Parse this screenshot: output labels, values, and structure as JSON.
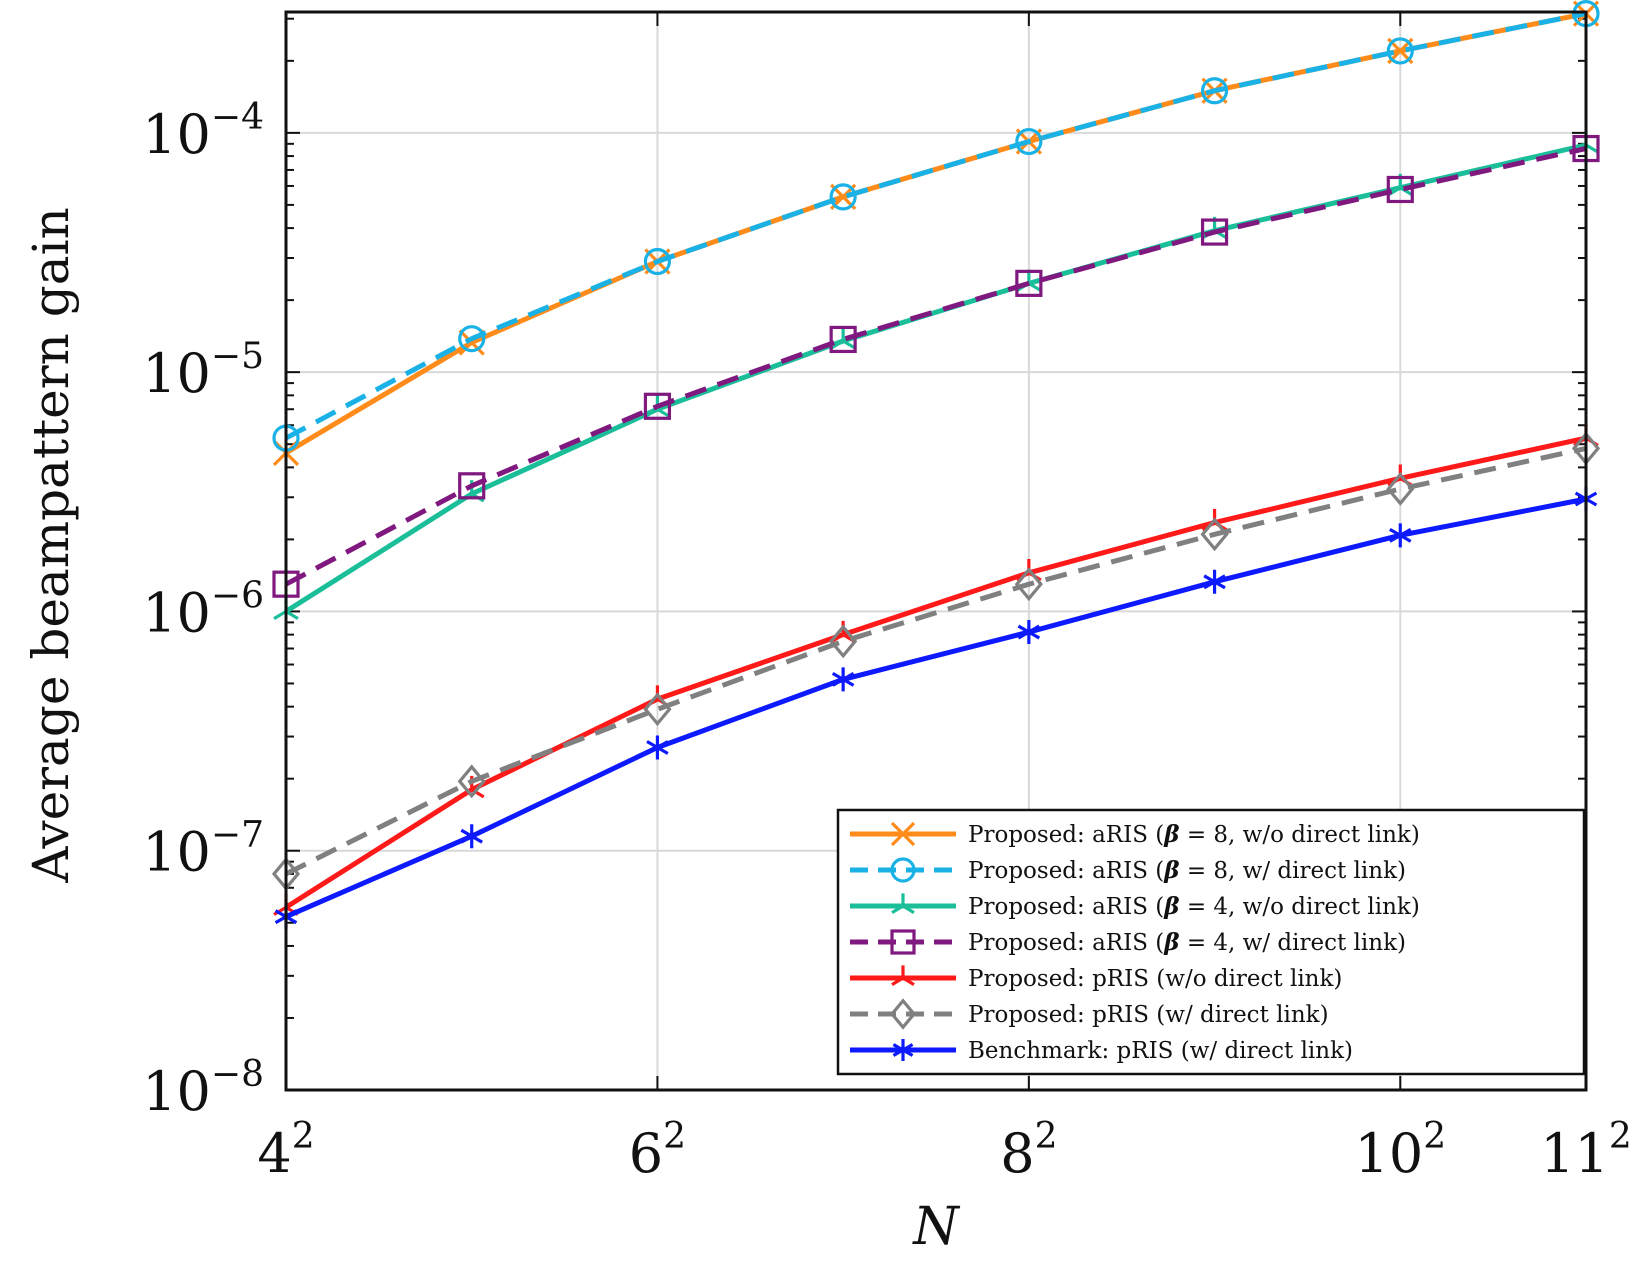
{
  "chart_data": {
    "type": "line",
    "title": "",
    "xlabel": "N",
    "ylabel": "Average beampattern gain",
    "x": [
      16,
      25,
      36,
      49,
      64,
      81,
      100,
      121
    ],
    "xticks": [
      16,
      36,
      64,
      100,
      121
    ],
    "xtick_labels": [
      {
        "base": "4",
        "exp": "2"
      },
      {
        "base": "6",
        "exp": "2"
      },
      {
        "base": "8",
        "exp": "2"
      },
      {
        "base": "10",
        "exp": "2"
      },
      {
        "base": "11",
        "exp": "2"
      }
    ],
    "xlim": [
      16,
      121
    ],
    "yscale": "log",
    "ylim": [
      1e-08,
      0.00032
    ],
    "yticks": [
      1e-08,
      1e-07,
      1e-06,
      1e-05,
      0.0001
    ],
    "ytick_labels": [
      {
        "base": "10",
        "exp": "−8"
      },
      {
        "base": "10",
        "exp": "−7"
      },
      {
        "base": "10",
        "exp": "−6"
      },
      {
        "base": "10",
        "exp": "−5"
      },
      {
        "base": "10",
        "exp": "−4"
      }
    ],
    "grid": true,
    "legend_position": "bottom-right",
    "series": [
      {
        "name": "Proposed: aRIS (β = 8, w/o direct link)",
        "color": "#ff8c1a",
        "dash": "solid",
        "marker": "x",
        "values": [
          4.6e-06,
          1.33e-05,
          2.9e-05,
          5.4e-05,
          9.2e-05,
          0.00015,
          0.00022,
          0.000315
        ]
      },
      {
        "name": "Proposed: aRIS (β = 8, w/ direct link)",
        "color": "#1ab2e6",
        "dash": "dashed",
        "marker": "o",
        "values": [
          5.3e-06,
          1.38e-05,
          2.9e-05,
          5.4e-05,
          9.2e-05,
          0.00015,
          0.00022,
          0.000315
        ]
      },
      {
        "name": "Proposed: aRIS (β = 4, w/o direct link)",
        "color": "#1abf9a",
        "dash": "solid",
        "marker": "tri",
        "values": [
          1e-06,
          3.1e-06,
          7e-06,
          1.35e-05,
          2.35e-05,
          3.9e-05,
          5.9e-05,
          8.9e-05
        ]
      },
      {
        "name": "Proposed: aRIS (β = 4, w/ direct link)",
        "color": "#80197f",
        "dash": "dashed",
        "marker": "square",
        "values": [
          1.3e-06,
          3.35e-06,
          7.2e-06,
          1.37e-05,
          2.35e-05,
          3.85e-05,
          5.8e-05,
          8.6e-05
        ]
      },
      {
        "name": "Proposed: pRIS (w/o direct link)",
        "color": "#ff1a1a",
        "dash": "solid",
        "marker": "tri",
        "values": [
          5.8e-08,
          1.8e-07,
          4.3e-07,
          8e-07,
          1.45e-06,
          2.35e-06,
          3.6e-06,
          5.3e-06
        ]
      },
      {
        "name": "Proposed: pRIS (w/ direct link)",
        "color": "#808080",
        "dash": "dashed",
        "marker": "diamond",
        "values": [
          8e-08,
          1.95e-07,
          3.9e-07,
          7.5e-07,
          1.3e-06,
          2.1e-06,
          3.25e-06,
          4.8e-06
        ]
      },
      {
        "name": "Benchmark: pRIS (w/ direct link)",
        "color": "#0d1aff",
        "dash": "solid",
        "marker": "asterisk",
        "values": [
          5.3e-08,
          1.15e-07,
          2.7e-07,
          5.2e-07,
          8.2e-07,
          1.33e-06,
          2.08e-06,
          2.95e-06
        ]
      }
    ],
    "legend_entries": [
      {
        "pre": "Proposed: aRIS (",
        "beta": "β",
        "mid": " = 8, w/o direct link)"
      },
      {
        "pre": "Proposed: aRIS (",
        "beta": "β",
        "mid": " = 8, w/ direct link)"
      },
      {
        "pre": "Proposed: aRIS (",
        "beta": "β",
        "mid": " = 4, w/o direct link)"
      },
      {
        "pre": "Proposed: aRIS (",
        "beta": "β",
        "mid": " = 4, w/ direct link)"
      },
      {
        "pre": "Proposed: pRIS (w/o direct link)",
        "beta": "",
        "mid": ""
      },
      {
        "pre": "Proposed: pRIS (w/ direct link)",
        "beta": "",
        "mid": ""
      },
      {
        "pre": "Benchmark: pRIS (w/ direct link)",
        "beta": "",
        "mid": ""
      }
    ]
  }
}
